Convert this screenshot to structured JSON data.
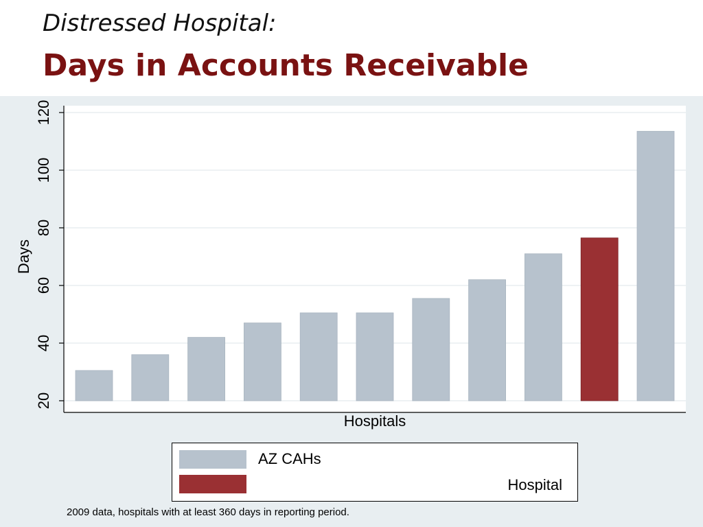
{
  "slide": {
    "subtitle": "Distressed Hospital:",
    "title": "Days in Accounts Receivable",
    "footnote": "2009 data, hospitals with at least 360 days in reporting period."
  },
  "legend": {
    "items": [
      {
        "label": "AZ CAHs",
        "color": "#b7c2cd"
      },
      {
        "label": "Hospital",
        "color": "#9a3033"
      }
    ]
  },
  "chart_data": {
    "type": "bar",
    "xlabel": "Hospitals",
    "ylabel": "Days",
    "ylim": [
      20,
      120
    ],
    "yticks": [
      20,
      40,
      60,
      80,
      100,
      120
    ],
    "grid": true,
    "legend_position": "bottom",
    "categories": [
      "",
      "",
      "",
      "",
      "",
      "",
      "",
      "",
      "",
      "",
      ""
    ],
    "values": [
      30.5,
      36,
      42,
      47,
      50.5,
      50.5,
      55.5,
      62,
      71,
      76.5,
      113.5
    ],
    "series_index": [
      0,
      0,
      0,
      0,
      0,
      0,
      0,
      0,
      0,
      1,
      0
    ],
    "series": [
      {
        "name": "AZ CAHs",
        "color": "#b7c2cd"
      },
      {
        "name": "Hospital",
        "color": "#9a3033"
      }
    ]
  }
}
